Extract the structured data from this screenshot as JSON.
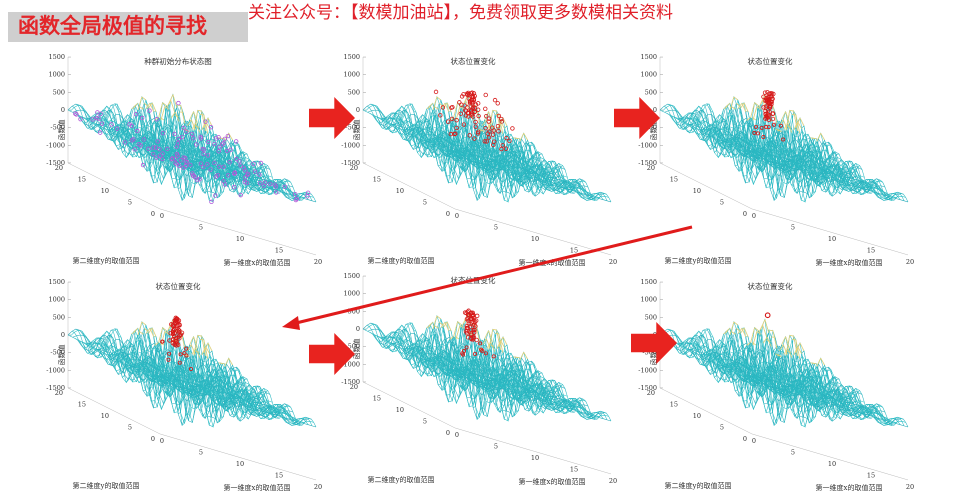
{
  "header": {
    "title": "函数全局极值的寻找",
    "notice": "关注公众号：【数模加油站】，免费领取更多数模相关资料"
  },
  "panel_labels": {
    "z_axis": "函数值",
    "y_axis": "第二维度y的取值范围",
    "x_axis": "第一维度x的取值范围"
  },
  "colors": {
    "header_title": "#e3262a",
    "header_notice": "#e0202a",
    "arrow": "#e8231f",
    "diagonal_arrow": "#e01b1b",
    "surface_low": "#2ec4c9",
    "surface_high": "#e8d27a",
    "particles_initial": "#b15ad8",
    "particles": "#d61a1a"
  },
  "chart_data": [
    {
      "type": "surface3d",
      "title": "种群初始分布状态图",
      "zlabel": "函数值",
      "ylabel": "第二维度y的取值范围",
      "xlabel": "第一维度x的取值范围",
      "zticks": [
        "1500",
        "1000",
        "500",
        "0",
        "-500",
        "-1000",
        "-1500"
      ],
      "yticks": [
        "20",
        "15",
        "10",
        "5",
        "0"
      ],
      "xticks": [
        "0",
        "5",
        "10",
        "15",
        "20"
      ],
      "xlim": [
        0,
        20
      ],
      "ylim": [
        0,
        20
      ],
      "zlim": [
        -1500,
        1500
      ],
      "particles": "spread",
      "particle_color": "#b15ad8"
    },
    {
      "type": "surface3d",
      "title": "状态位置变化",
      "zlabel": "函数值",
      "ylabel": "第二维度y的取值范围",
      "xlabel": "第一维度x的取值范围",
      "zticks": [
        "1500",
        "1000",
        "500",
        "0",
        "-500",
        "-1000",
        "-1500"
      ],
      "yticks": [
        "20",
        "15",
        "10",
        "5",
        "0"
      ],
      "xticks": [
        "0",
        "5",
        "10",
        "15",
        "20"
      ],
      "xlim": [
        0,
        20
      ],
      "ylim": [
        0,
        20
      ],
      "zlim": [
        -1500,
        1500
      ],
      "particles": "cluster-wide",
      "particle_color": "#d61a1a"
    },
    {
      "type": "surface3d",
      "title": "状态位置变化",
      "zlabel": "函数值",
      "ylabel": "第二维度y的取值范围",
      "xlabel": "第一维度x的取值范围",
      "zticks": [
        "1500",
        "1000",
        "500",
        "0",
        "-500",
        "-1000",
        "-1500"
      ],
      "yticks": [
        "20",
        "15",
        "10",
        "5",
        "0"
      ],
      "xticks": [
        "0",
        "5",
        "10",
        "15",
        "20"
      ],
      "xlim": [
        0,
        20
      ],
      "ylim": [
        0,
        20
      ],
      "zlim": [
        -1500,
        1500
      ],
      "particles": "cluster-peak",
      "particle_color": "#d61a1a"
    },
    {
      "type": "surface3d",
      "title": "状态位置变化",
      "zlabel": "函数值",
      "ylabel": "第二维度y的取值范围",
      "xlabel": "第一维度x的取值范围",
      "zticks": [
        "1500",
        "1000",
        "500",
        "0",
        "-500",
        "-1000",
        "-1500"
      ],
      "yticks": [
        "20",
        "15",
        "10",
        "5",
        "0"
      ],
      "xticks": [
        "0",
        "5",
        "10",
        "15",
        "20"
      ],
      "xlim": [
        0,
        20
      ],
      "ylim": [
        0,
        20
      ],
      "zlim": [
        -1500,
        1500
      ],
      "particles": "cluster-peak",
      "particle_color": "#d61a1a"
    },
    {
      "type": "surface3d",
      "title": "状态位置变化",
      "zlabel": "函数值",
      "ylabel": "第二维度y的取值范围",
      "xlabel": "第一维度x的取值范围",
      "zticks": [
        "1500",
        "1000",
        "500",
        "0",
        "-500",
        "-1000",
        "-1500"
      ],
      "yticks": [
        "20",
        "15",
        "10",
        "5",
        "0"
      ],
      "xticks": [
        "0",
        "5",
        "10",
        "15",
        "20"
      ],
      "xlim": [
        0,
        20
      ],
      "ylim": [
        0,
        20
      ],
      "zlim": [
        -1500,
        1500
      ],
      "particles": "cluster-peak",
      "particle_color": "#d61a1a"
    },
    {
      "type": "surface3d",
      "title": "状态位置变化",
      "zlabel": "函数值",
      "ylabel": "第二维度y的取值范围",
      "xlabel": "第一维度x的取值范围",
      "zticks": [
        "1500",
        "1000",
        "500",
        "0",
        "-500",
        "-1000",
        "-1500"
      ],
      "yticks": [
        "20",
        "15",
        "10",
        "5",
        "0"
      ],
      "xticks": [
        "0",
        "5",
        "10",
        "15",
        "20"
      ],
      "xlim": [
        0,
        20
      ],
      "ylim": [
        0,
        20
      ],
      "zlim": [
        -1500,
        1500
      ],
      "particles": "converged",
      "particle_color": "#d61a1a"
    }
  ]
}
